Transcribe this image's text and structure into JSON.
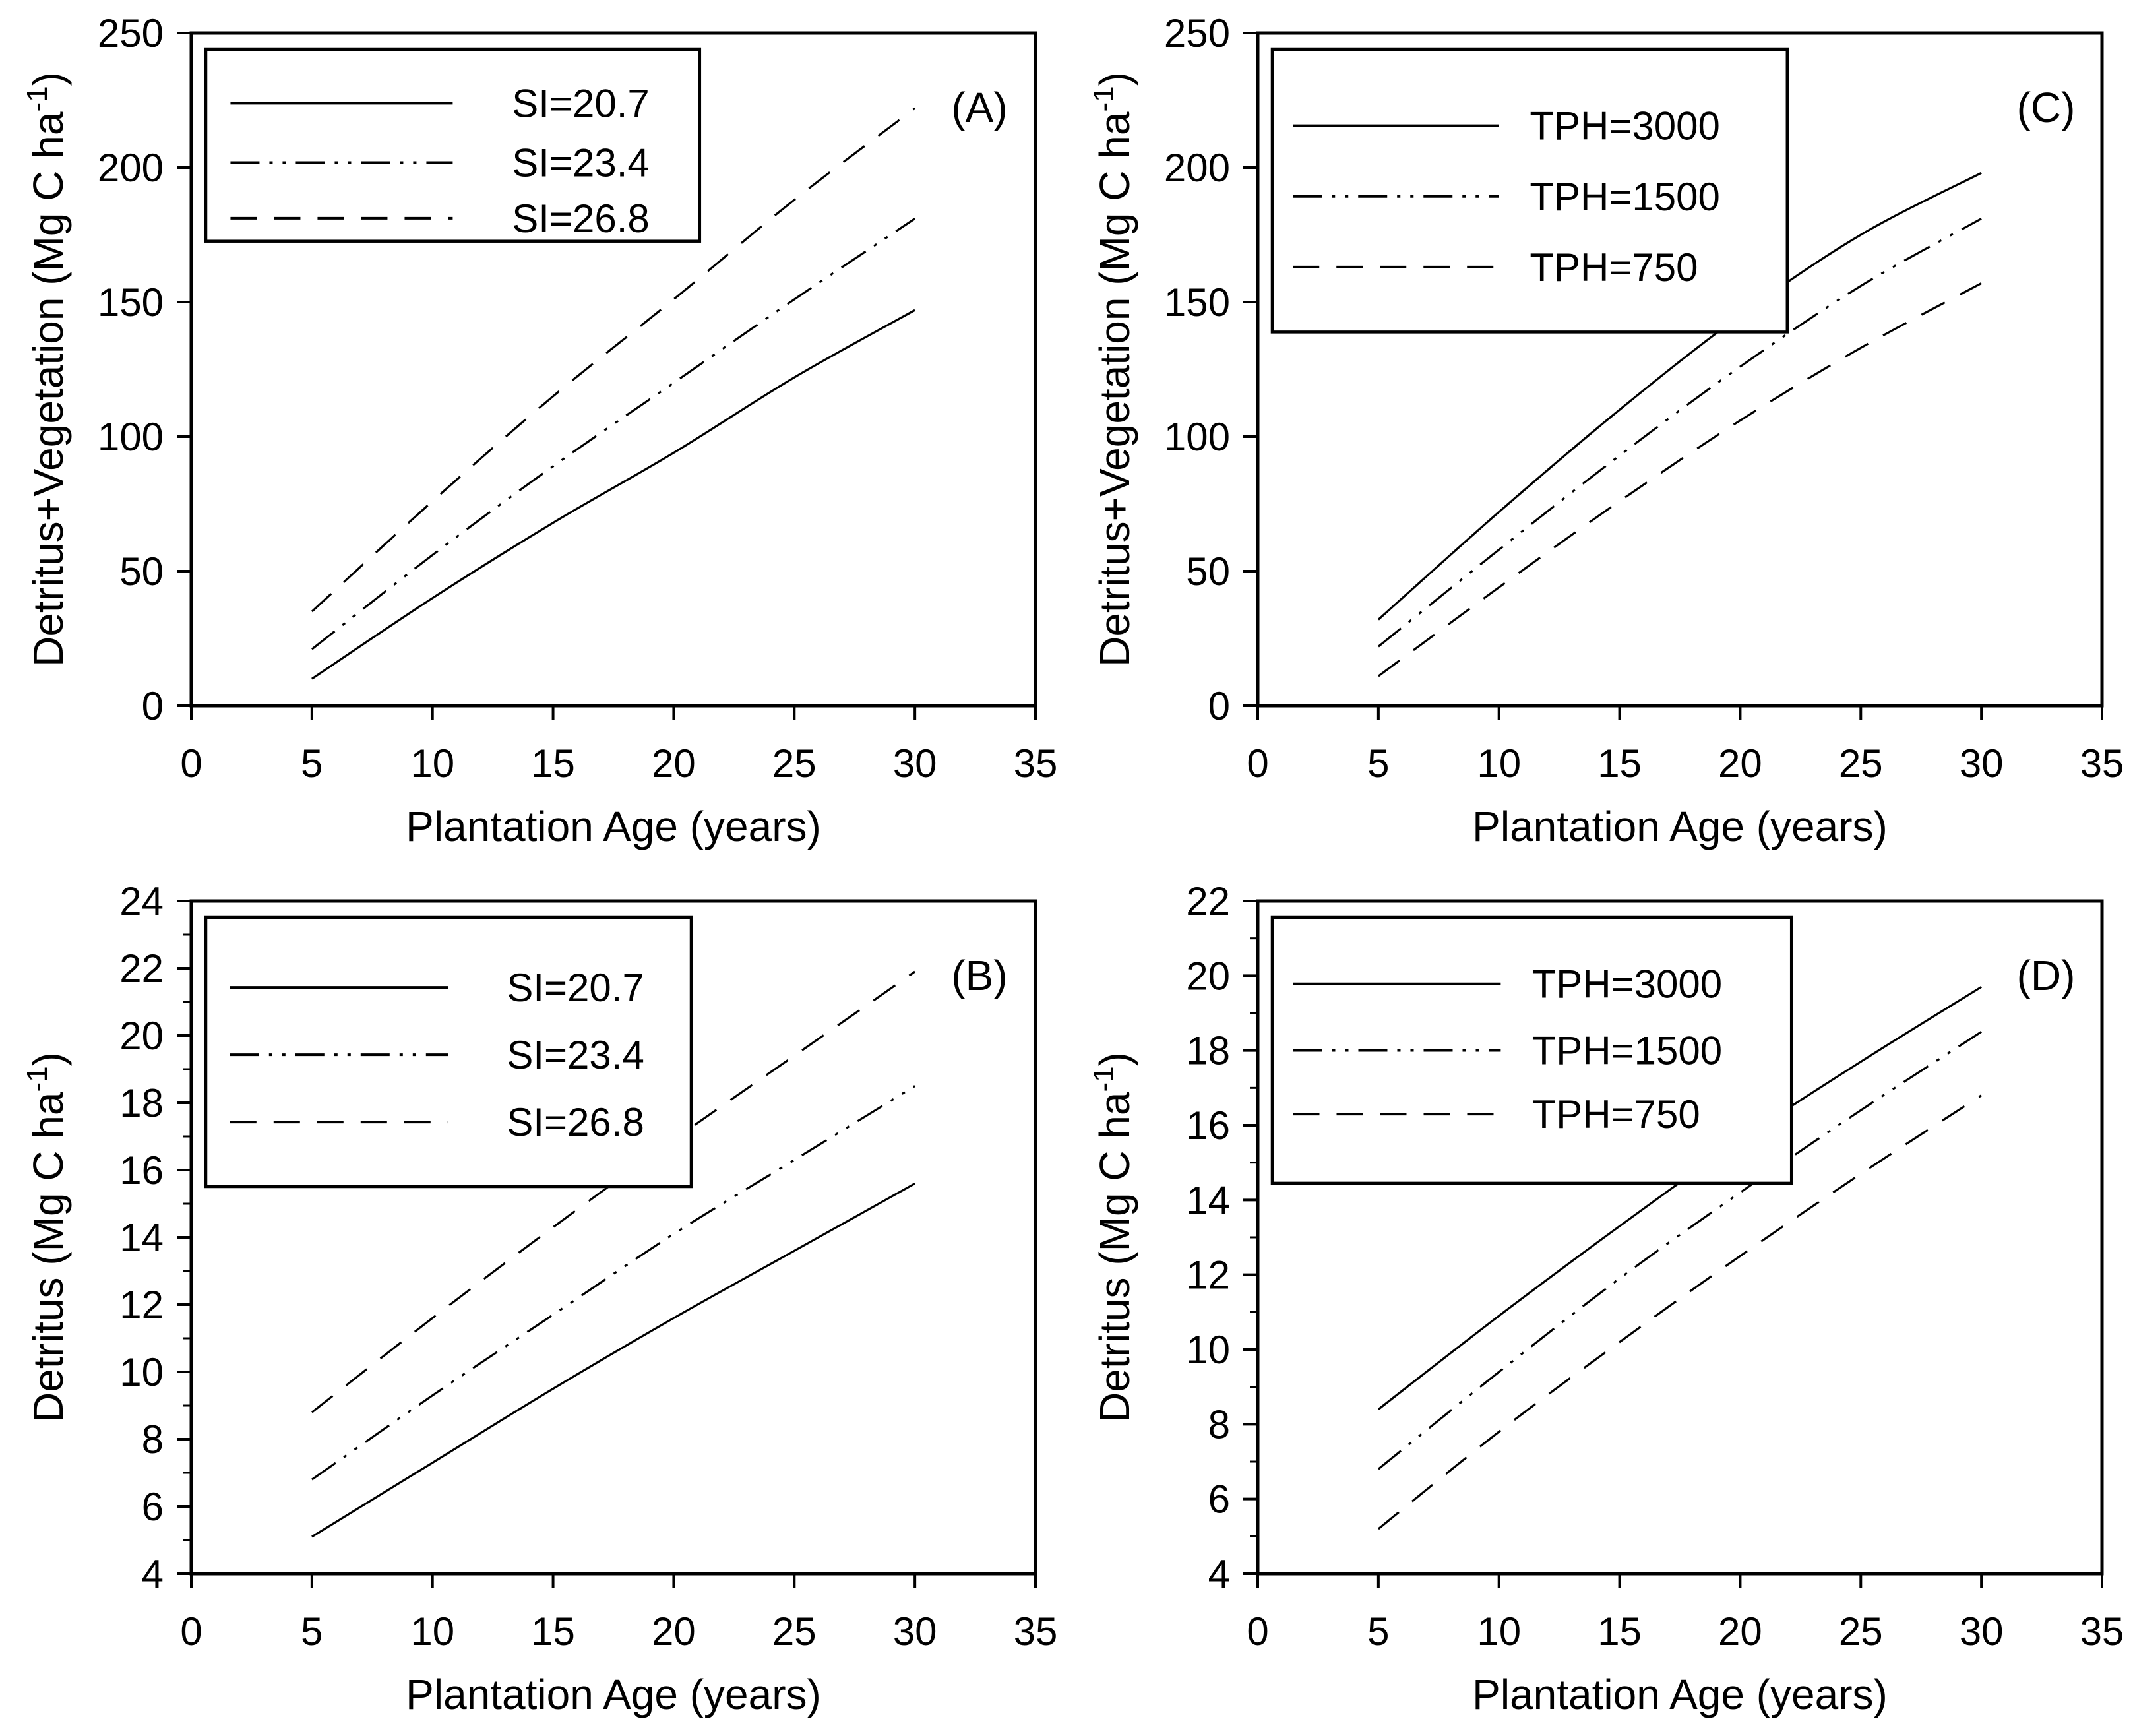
{
  "figure": {
    "background": "#ffffff",
    "ink_color": "#000000",
    "description_labels": {
      "xlabel": "Plantation Age (years)",
      "ylabel_top": "Detritus+Vegetation (Mg C ha-1)",
      "ylabel_bottom": "Detritus (Mg C ha-1)"
    }
  },
  "chart_data": [
    {
      "type": "line",
      "panel_label": "(A)",
      "grid_position": "top-left",
      "xlabel": "Plantation Age (years)",
      "ylabel_base": "Detritus+Vegetation (Mg C ha",
      "ylabel_sup": "-1",
      "ylabel_end": ")",
      "xlim": [
        0,
        35
      ],
      "ylim": [
        0,
        250
      ],
      "xticks": [
        0,
        5,
        10,
        15,
        20,
        25,
        30,
        35
      ],
      "yticks": [
        0,
        50,
        100,
        150,
        200,
        250
      ],
      "y_minor_step": null,
      "grid": false,
      "legend": {
        "position": "top-left",
        "entries": [
          {
            "label": "SI=20.7",
            "style": "solid"
          },
          {
            "label": "SI=23.4",
            "style": "dashdotdot"
          },
          {
            "label": "SI=26.8",
            "style": "dash"
          }
        ],
        "box": {
          "width_frac": 0.585,
          "height_frac": 0.285,
          "row_fracs": [
            0.28,
            0.59,
            0.88
          ],
          "line_span": [
            0.05,
            0.5
          ],
          "label_x_frac": 0.62
        }
      },
      "series": [
        {
          "name": "SI=20.7",
          "style": "solid",
          "points": [
            [
              5,
              10
            ],
            [
              10,
              40
            ],
            [
              15,
              68
            ],
            [
              20,
              94
            ],
            [
              25,
              122
            ],
            [
              30,
              147
            ]
          ]
        },
        {
          "name": "SI=23.4",
          "style": "dashdotdot",
          "points": [
            [
              5,
              21
            ],
            [
              10,
              56
            ],
            [
              15,
              89
            ],
            [
              20,
              120
            ],
            [
              25,
              151
            ],
            [
              30,
              181
            ]
          ]
        },
        {
          "name": "SI=26.8",
          "style": "dash",
          "points": [
            [
              5,
              35
            ],
            [
              10,
              76
            ],
            [
              15,
              115
            ],
            [
              20,
              151
            ],
            [
              25,
              188
            ],
            [
              30,
              222
            ]
          ]
        }
      ]
    },
    {
      "type": "line",
      "panel_label": "(C)",
      "grid_position": "top-right",
      "xlabel": "Plantation Age (years)",
      "ylabel_base": "Detritus+Vegetation (Mg C ha",
      "ylabel_sup": "-1",
      "ylabel_end": ")",
      "xlim": [
        0,
        35
      ],
      "ylim": [
        0,
        250
      ],
      "xticks": [
        0,
        5,
        10,
        15,
        20,
        25,
        30,
        35
      ],
      "yticks": [
        0,
        50,
        100,
        150,
        200,
        250
      ],
      "y_minor_step": null,
      "grid": false,
      "legend": {
        "position": "top-left",
        "entries": [
          {
            "label": "TPH=3000",
            "style": "solid"
          },
          {
            "label": "TPH=1500",
            "style": "dashdotdot"
          },
          {
            "label": "TPH=750",
            "style": "dash"
          }
        ],
        "box": {
          "width_frac": 0.61,
          "height_frac": 0.42,
          "row_fracs": [
            0.27,
            0.52,
            0.77
          ],
          "line_span": [
            0.04,
            0.44
          ],
          "label_x_frac": 0.5
        }
      },
      "series": [
        {
          "name": "TPH=3000",
          "style": "solid",
          "points": [
            [
              5,
              32
            ],
            [
              10,
              72
            ],
            [
              15,
              110
            ],
            [
              20,
              145
            ],
            [
              25,
              175
            ],
            [
              30,
              198
            ]
          ]
        },
        {
          "name": "TPH=1500",
          "style": "dashdotdot",
          "points": [
            [
              5,
              22
            ],
            [
              10,
              58
            ],
            [
              15,
              93
            ],
            [
              20,
              126
            ],
            [
              25,
              156
            ],
            [
              30,
              181
            ]
          ]
        },
        {
          "name": "TPH=750",
          "style": "dash",
          "points": [
            [
              5,
              11
            ],
            [
              10,
              44
            ],
            [
              15,
              76
            ],
            [
              20,
              106
            ],
            [
              25,
              133
            ],
            [
              30,
              157
            ]
          ]
        }
      ]
    },
    {
      "type": "line",
      "panel_label": "(B)",
      "grid_position": "bottom-left",
      "xlabel": "Plantation Age (years)",
      "ylabel_base": "Detritus (Mg C ha",
      "ylabel_sup": "-1",
      "ylabel_end": ")",
      "xlim": [
        0,
        35
      ],
      "ylim": [
        4,
        24
      ],
      "xticks": [
        0,
        5,
        10,
        15,
        20,
        25,
        30,
        35
      ],
      "yticks": [
        4,
        6,
        8,
        10,
        12,
        14,
        16,
        18,
        20,
        22,
        24
      ],
      "y_minor_step": 1,
      "grid": false,
      "legend": {
        "position": "top-left",
        "entries": [
          {
            "label": "SI=20.7",
            "style": "solid"
          },
          {
            "label": "SI=23.4",
            "style": "dashdotdot"
          },
          {
            "label": "SI=26.8",
            "style": "dash"
          }
        ],
        "box": {
          "width_frac": 0.575,
          "height_frac": 0.4,
          "row_fracs": [
            0.26,
            0.51,
            0.76
          ],
          "line_span": [
            0.05,
            0.5
          ],
          "label_x_frac": 0.62
        }
      },
      "series": [
        {
          "name": "SI=20.7",
          "style": "solid",
          "points": [
            [
              5,
              5.1
            ],
            [
              10,
              7.3
            ],
            [
              15,
              9.5
            ],
            [
              20,
              11.6
            ],
            [
              25,
              13.6
            ],
            [
              30,
              15.6
            ]
          ]
        },
        {
          "name": "SI=23.4",
          "style": "dashdotdot",
          "points": [
            [
              5,
              6.8
            ],
            [
              10,
              9.3
            ],
            [
              15,
              11.7
            ],
            [
              20,
              14.1
            ],
            [
              25,
              16.3
            ],
            [
              30,
              18.5
            ]
          ]
        },
        {
          "name": "SI=26.8",
          "style": "dash",
          "points": [
            [
              5,
              8.8
            ],
            [
              10,
              11.6
            ],
            [
              15,
              14.3
            ],
            [
              20,
              16.9
            ],
            [
              25,
              19.4
            ],
            [
              30,
              21.9
            ]
          ]
        }
      ]
    },
    {
      "type": "line",
      "panel_label": "(D)",
      "grid_position": "bottom-right",
      "xlabel": "Plantation Age (years)",
      "ylabel_base": "Detritus (Mg C ha",
      "ylabel_sup": "-1",
      "ylabel_end": ")",
      "xlim": [
        0,
        35
      ],
      "ylim": [
        4,
        22
      ],
      "xticks": [
        0,
        5,
        10,
        15,
        20,
        25,
        30,
        35
      ],
      "yticks": [
        4,
        6,
        8,
        10,
        12,
        14,
        16,
        18,
        20,
        22
      ],
      "y_minor_step": 1,
      "grid": false,
      "legend": {
        "position": "top-left",
        "entries": [
          {
            "label": "TPH=3000",
            "style": "solid"
          },
          {
            "label": "TPH=1500",
            "style": "dashdotdot"
          },
          {
            "label": "TPH=750",
            "style": "dash"
          }
        ],
        "box": {
          "width_frac": 0.615,
          "height_frac": 0.395,
          "row_fracs": [
            0.25,
            0.5,
            0.74
          ],
          "line_span": [
            0.04,
            0.44
          ],
          "label_x_frac": 0.5
        }
      },
      "series": [
        {
          "name": "TPH=3000",
          "style": "solid",
          "points": [
            [
              5,
              8.4
            ],
            [
              10,
              10.9
            ],
            [
              15,
              13.3
            ],
            [
              20,
              15.6
            ],
            [
              25,
              17.7
            ],
            [
              30,
              19.7
            ]
          ]
        },
        {
          "name": "TPH=1500",
          "style": "dashdotdot",
          "points": [
            [
              5,
              6.8
            ],
            [
              10,
              9.4
            ],
            [
              15,
              11.9
            ],
            [
              20,
              14.2
            ],
            [
              25,
              16.4
            ],
            [
              30,
              18.5
            ]
          ]
        },
        {
          "name": "TPH=750",
          "style": "dash",
          "points": [
            [
              5,
              5.2
            ],
            [
              10,
              7.8
            ],
            [
              15,
              10.2
            ],
            [
              20,
              12.5
            ],
            [
              25,
              14.7
            ],
            [
              30,
              16.8
            ]
          ]
        }
      ]
    }
  ]
}
